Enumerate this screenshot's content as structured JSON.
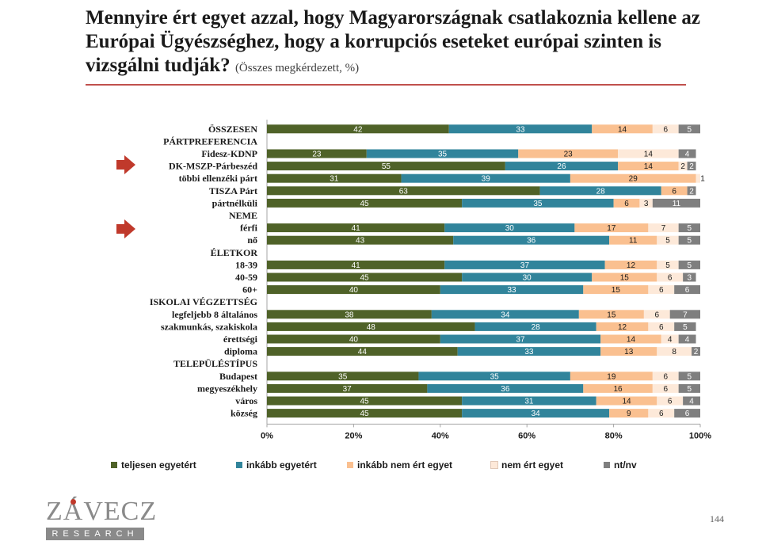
{
  "title": {
    "main": "Mennyire ért egyet azzal, hogy Magyarországnak csatlakoznia kellene az Európai Ügyészséghez, hogy a korrupciós eseteket európai szinten is vizsgálni tudják?",
    "sub": "(Összes megkérdezett, %)"
  },
  "logo": {
    "main": "ZÁVECZ",
    "sub": "RESEARCH"
  },
  "page_number": "144",
  "colors": {
    "teljesen": "#4f6228",
    "inkabb": "#31849b",
    "inkabb_nem": "#fac090",
    "nem": "#fde9d9",
    "ntnv": "#7f7f7f",
    "title_rule": "#c0504d",
    "arrow": "#c0392b"
  },
  "chart_data": {
    "type": "bar",
    "orientation": "horizontal",
    "stacked": true,
    "xlim": [
      0,
      100
    ],
    "x_ticks": [
      "0%",
      "20%",
      "40%",
      "60%",
      "80%",
      "100%"
    ],
    "categories": [
      "ÖSSZESEN",
      "PÁRTPREFERENCIA",
      "Fidesz-KDNP",
      "DK-MSZP-Párbeszéd",
      "többi ellenzéki párt",
      "TISZA Párt",
      "pártnélküli",
      "NEME",
      "férfi",
      "nő",
      "ÉLETKOR",
      "18-39",
      "40-59",
      "60+",
      "ISKOLAI VÉGZETTSÉG",
      "legfeljebb 8 általános",
      "szakmunkás, szakiskola",
      "érettségi",
      "diploma",
      "TELEPÜLÉSTÍPUS",
      "Budapest",
      "megyeszékhely",
      "város",
      "község"
    ],
    "highlighted": [
      "DK-MSZP-Párbeszéd",
      "férfi"
    ],
    "series": [
      {
        "name": "teljesen egyetért",
        "values": [
          42,
          null,
          23,
          55,
          31,
          63,
          45,
          null,
          41,
          43,
          null,
          41,
          45,
          40,
          null,
          38,
          48,
          40,
          44,
          null,
          35,
          37,
          45,
          45
        ]
      },
      {
        "name": "inkább egyetért",
        "values": [
          33,
          null,
          35,
          26,
          39,
          28,
          35,
          null,
          30,
          36,
          null,
          37,
          30,
          33,
          null,
          34,
          28,
          37,
          33,
          null,
          35,
          36,
          31,
          34
        ]
      },
      {
        "name": "inkább nem ért egyet",
        "values": [
          14,
          null,
          23,
          14,
          29,
          6,
          6,
          null,
          17,
          11,
          null,
          12,
          15,
          15,
          null,
          15,
          12,
          14,
          13,
          null,
          19,
          16,
          14,
          9
        ]
      },
      {
        "name": "nem ért egyet",
        "values": [
          6,
          null,
          14,
          2,
          1,
          0,
          3,
          null,
          7,
          5,
          null,
          5,
          6,
          6,
          null,
          6,
          6,
          4,
          8,
          null,
          6,
          6,
          6,
          6
        ]
      },
      {
        "name": "nt/nv",
        "values": [
          5,
          null,
          4,
          2,
          0,
          2,
          11,
          null,
          5,
          5,
          null,
          5,
          3,
          6,
          null,
          7,
          5,
          4,
          2,
          null,
          5,
          5,
          4,
          6
        ]
      }
    ]
  }
}
